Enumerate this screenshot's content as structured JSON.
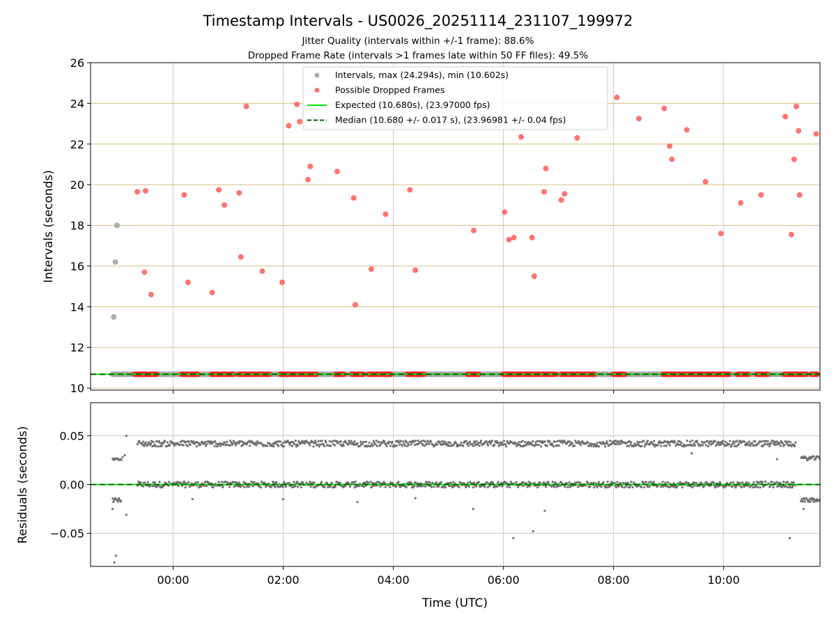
{
  "chart_data": [
    {
      "type": "scatter",
      "title": "Timestamp Intervals - US0026_20251114_231107_199972",
      "subtitle_lines": [
        "Jitter Quality (intervals within +/-1 frame): 88.6%",
        "Dropped Frame Rate (intervals >1 frames late within 50 FF files): 49.5%"
      ],
      "ylabel": "Intervals (seconds)",
      "xlim_hours": [
        -1.5,
        11.75
      ],
      "ylim": [
        9.9,
        26
      ],
      "yticks": [
        10,
        12,
        14,
        16,
        18,
        20,
        22,
        24,
        26
      ],
      "ytick_labels": [
        "10",
        "12",
        "14",
        "16",
        "18",
        "20",
        "22",
        "24",
        "26"
      ],
      "hgrid_color": "#d4bf80",
      "legend": {
        "placement": "upper-center",
        "entries": [
          {
            "label": "Intervals, max (24.294s), min (10.602s)",
            "kind": "dot",
            "color": "#999999"
          },
          {
            "label": "Possible Dropped Frames",
            "kind": "dot",
            "color": "#ff5555"
          },
          {
            "label": "Expected (10.680s), (23.97000 fps)",
            "kind": "line",
            "color": "#00ee00"
          },
          {
            "label": "Median (10.680 +/- 0.017 s), (23.96981 +/- 0.04 fps)",
            "kind": "dashed",
            "color": "#006400"
          }
        ]
      },
      "expected_interval": 10.68,
      "median_interval": 10.68,
      "normal_intervals": [
        [
          -1.08,
          13.5
        ],
        [
          -1.05,
          16.2
        ],
        [
          -1.02,
          18.0
        ]
      ],
      "normal_band": {
        "y": 10.68,
        "x_start": -1.1,
        "x_end": 11.7
      },
      "dropped_frames": [
        [
          -0.65,
          19.65
        ],
        [
          -0.5,
          19.7
        ],
        [
          -0.52,
          15.7
        ],
        [
          -0.4,
          14.6
        ],
        [
          0.2,
          19.5
        ],
        [
          0.27,
          15.2
        ],
        [
          0.71,
          14.7
        ],
        [
          0.83,
          19.75
        ],
        [
          0.93,
          19.0
        ],
        [
          1.2,
          19.6
        ],
        [
          1.23,
          16.45
        ],
        [
          1.33,
          23.85
        ],
        [
          1.62,
          15.75
        ],
        [
          1.98,
          15.2
        ],
        [
          2.1,
          22.9
        ],
        [
          2.25,
          23.95
        ],
        [
          2.3,
          23.1
        ],
        [
          2.45,
          20.25
        ],
        [
          2.49,
          20.9
        ],
        [
          2.98,
          20.65
        ],
        [
          3.28,
          19.35
        ],
        [
          3.31,
          14.1
        ],
        [
          3.6,
          15.85
        ],
        [
          3.86,
          18.55
        ],
        [
          4.3,
          19.75
        ],
        [
          4.4,
          15.8
        ],
        [
          5.46,
          17.75
        ],
        [
          6.02,
          18.65
        ],
        [
          6.1,
          17.3
        ],
        [
          6.19,
          17.4
        ],
        [
          6.32,
          22.35
        ],
        [
          6.52,
          17.4
        ],
        [
          6.56,
          15.5
        ],
        [
          6.74,
          19.65
        ],
        [
          6.77,
          20.8
        ],
        [
          7.05,
          19.25
        ],
        [
          7.11,
          19.55
        ],
        [
          7.34,
          22.3
        ],
        [
          8.06,
          24.29
        ],
        [
          8.46,
          23.25
        ],
        [
          8.92,
          23.75
        ],
        [
          9.02,
          21.9
        ],
        [
          9.06,
          21.25
        ],
        [
          9.33,
          22.7
        ],
        [
          9.67,
          20.15
        ],
        [
          9.95,
          17.6
        ],
        [
          10.31,
          19.1
        ],
        [
          10.68,
          19.5
        ],
        [
          11.12,
          23.35
        ],
        [
          11.23,
          17.55
        ],
        [
          11.28,
          21.25
        ],
        [
          11.32,
          23.85
        ],
        [
          11.36,
          22.65
        ],
        [
          11.38,
          19.5
        ],
        [
          11.68,
          22.5
        ]
      ],
      "dropped_clusters": [
        [
          -0.7,
          -0.3
        ],
        [
          0.15,
          0.45
        ],
        [
          0.7,
          1.1
        ],
        [
          1.2,
          1.5
        ],
        [
          1.55,
          1.75
        ],
        [
          1.95,
          2.0
        ],
        [
          2.05,
          2.25
        ],
        [
          2.3,
          2.6
        ],
        [
          2.95,
          3.1
        ],
        [
          3.25,
          3.45
        ],
        [
          3.55,
          3.75
        ],
        [
          3.8,
          3.95
        ],
        [
          4.25,
          4.55
        ],
        [
          5.35,
          5.55
        ],
        [
          6.0,
          6.35
        ],
        [
          6.4,
          6.65
        ],
        [
          6.7,
          6.95
        ],
        [
          7.05,
          7.4
        ],
        [
          7.45,
          7.65
        ],
        [
          8.0,
          8.2
        ],
        [
          8.9,
          9.35
        ],
        [
          9.4,
          9.6
        ],
        [
          9.65,
          9.85
        ],
        [
          9.9,
          10.1
        ],
        [
          10.25,
          10.45
        ],
        [
          10.6,
          10.8
        ],
        [
          11.1,
          11.5
        ],
        [
          11.6,
          11.7
        ]
      ]
    },
    {
      "type": "scatter",
      "xlabel": "Time (UTC)",
      "ylabel": "Residuals (seconds)",
      "xlim_hours": [
        -1.5,
        11.75
      ],
      "ylim": [
        -0.084,
        0.084
      ],
      "yticks": [
        -0.05,
        0.0,
        0.05
      ],
      "ytick_labels": [
        "−0.05",
        "0.00",
        "0.05"
      ],
      "xticks_hours": [
        0,
        2,
        4,
        6,
        8,
        10
      ],
      "xtick_labels": [
        "00:00",
        "02:00",
        "04:00",
        "06:00",
        "08:00",
        "10:00"
      ],
      "residual_bands": [
        {
          "center": 0.0,
          "spread": 0.003,
          "x_start": -0.65,
          "x_end": 11.3
        },
        {
          "center": 0.042,
          "spread": 0.003,
          "x_start": -0.65,
          "x_end": 11.3
        },
        {
          "center": -0.016,
          "spread": 0.002,
          "x_start": -1.1,
          "x_end": -0.95
        },
        {
          "center": 0.026,
          "spread": 0.001,
          "x_start": -1.1,
          "x_end": -0.95
        },
        {
          "center": -0.016,
          "spread": 0.002,
          "x_start": 11.4,
          "x_end": 11.75
        },
        {
          "center": 0.027,
          "spread": 0.002,
          "x_start": 11.4,
          "x_end": 11.75
        }
      ],
      "residual_outliers": [
        [
          -1.07,
          -0.08
        ],
        [
          -1.04,
          -0.073
        ],
        [
          -1.1,
          -0.025
        ],
        [
          -0.85,
          -0.031
        ],
        [
          -0.85,
          0.05
        ],
        [
          6.18,
          -0.055
        ],
        [
          6.54,
          -0.048
        ],
        [
          6.75,
          -0.027
        ],
        [
          11.2,
          -0.055
        ],
        [
          11.45,
          -0.025
        ],
        [
          5.45,
          -0.025
        ],
        [
          9.42,
          0.032
        ],
        [
          10.97,
          0.026
        ],
        [
          -0.88,
          0.03
        ],
        [
          -0.92,
          0.028
        ],
        [
          2.0,
          -0.015
        ],
        [
          3.35,
          -0.018
        ],
        [
          0.35,
          -0.015
        ],
        [
          4.4,
          -0.014
        ]
      ],
      "zero_line": {
        "y": 0.0,
        "color": "#00ee00",
        "dashed_color": "#006400"
      }
    }
  ]
}
